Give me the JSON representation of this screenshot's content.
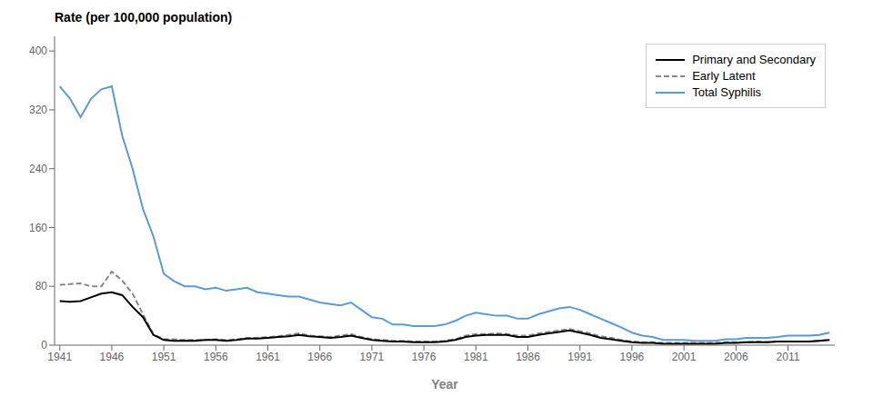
{
  "chart_data": {
    "type": "line",
    "title": "Rate (per 100,000 population)",
    "x_label": "Year",
    "x": [
      1941,
      1942,
      1943,
      1944,
      1945,
      1946,
      1947,
      1948,
      1949,
      1950,
      1951,
      1952,
      1953,
      1954,
      1955,
      1956,
      1957,
      1958,
      1959,
      1960,
      1961,
      1962,
      1963,
      1964,
      1965,
      1966,
      1967,
      1968,
      1969,
      1970,
      1971,
      1972,
      1973,
      1974,
      1975,
      1976,
      1977,
      1978,
      1979,
      1980,
      1981,
      1982,
      1983,
      1984,
      1985,
      1986,
      1987,
      1988,
      1989,
      1990,
      1991,
      1992,
      1993,
      1994,
      1995,
      1996,
      1997,
      1998,
      1999,
      2000,
      2001,
      2002,
      2003,
      2004,
      2005,
      2006,
      2007,
      2008,
      2009,
      2010,
      2011,
      2012,
      2013,
      2014,
      2015
    ],
    "series": [
      {
        "name": "Primary and Secondary",
        "color": "#000000",
        "line_style": "solid",
        "values": [
          60,
          59,
          60,
          65,
          70,
          72,
          68,
          52,
          38,
          14,
          7,
          6,
          6,
          6,
          7,
          7,
          6,
          7,
          9,
          9,
          10,
          11,
          12,
          14,
          12,
          11,
          10,
          11,
          13,
          10,
          7,
          6,
          5,
          5,
          4,
          4,
          4,
          5,
          7,
          11,
          13,
          14,
          14,
          14,
          11,
          11,
          14,
          16,
          18,
          20,
          17,
          14,
          10,
          8,
          6,
          4,
          3,
          3,
          2,
          2,
          2,
          2,
          2,
          2,
          3,
          3,
          4,
          4,
          4,
          5,
          5,
          5,
          5,
          6,
          7
        ]
      },
      {
        "name": "Early Latent",
        "color": "#888888",
        "line_style": "dashed",
        "values": [
          82,
          83,
          84,
          80,
          80,
          100,
          88,
          70,
          42,
          15,
          8,
          8,
          7,
          7,
          7,
          8,
          7,
          8,
          10,
          10,
          11,
          12,
          14,
          16,
          13,
          12,
          11,
          13,
          15,
          11,
          8,
          7,
          6,
          6,
          5,
          5,
          5,
          6,
          8,
          13,
          15,
          15,
          16,
          15,
          13,
          13,
          16,
          18,
          20,
          22,
          19,
          16,
          12,
          10,
          7,
          5,
          4,
          4,
          3,
          3,
          3,
          3,
          3,
          3,
          4,
          4,
          4,
          5,
          4,
          5,
          5,
          5,
          5,
          6,
          7
        ]
      },
      {
        "name": "Total Syphilis",
        "color": "#5b9bd5",
        "line_style": "solid",
        "values": [
          352,
          335,
          310,
          335,
          348,
          352,
          285,
          240,
          185,
          148,
          97,
          87,
          80,
          80,
          76,
          78,
          74,
          76,
          78,
          72,
          70,
          68,
          66,
          66,
          62,
          58,
          56,
          54,
          58,
          48,
          38,
          36,
          28,
          28,
          26,
          26,
          26,
          28,
          33,
          40,
          44,
          42,
          40,
          40,
          36,
          36,
          42,
          46,
          50,
          52,
          48,
          42,
          36,
          30,
          24,
          17,
          13,
          11,
          7,
          7,
          7,
          6,
          6,
          6,
          8,
          8,
          10,
          10,
          10,
          11,
          13,
          13,
          13,
          14,
          17
        ]
      }
    ],
    "xlim": [
      1940.5,
      2015.5
    ],
    "xticks": [
      1941,
      1946,
      1951,
      1956,
      1961,
      1966,
      1971,
      1976,
      1981,
      1986,
      1991,
      1996,
      2001,
      2006,
      2011
    ],
    "ylim": [
      0,
      420
    ],
    "yticks": [
      0,
      80,
      160,
      240,
      320,
      400
    ],
    "grid": false,
    "legend": "upper right"
  }
}
